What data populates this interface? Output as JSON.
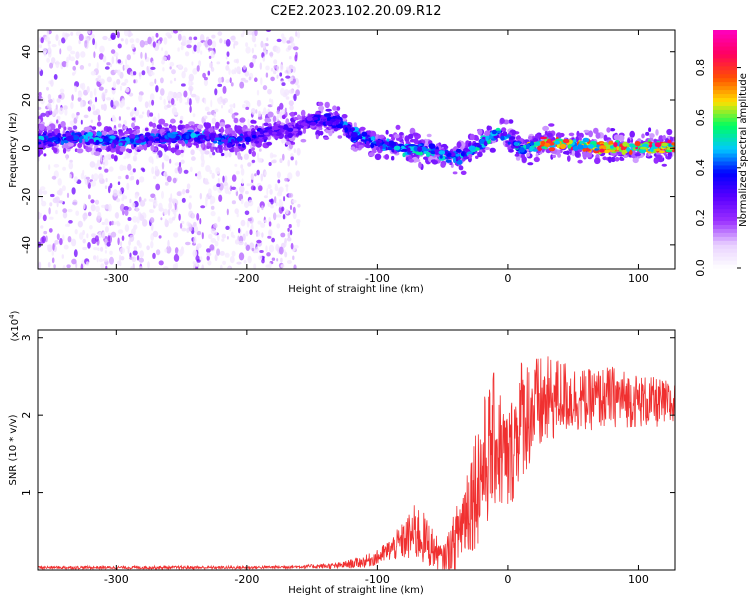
{
  "chart_data": [
    {
      "type": "heatmap",
      "title": "C2E2.2023.102.20.09.R12",
      "xlabel": "Height of straight line (km)",
      "ylabel": "Frequency (Hz)",
      "xlim": [
        -360,
        128
      ],
      "ylim": [
        -50,
        49
      ],
      "xticks": [
        -300,
        -200,
        -100,
        0,
        100
      ],
      "xtick_labels": [
        "-300",
        "-200",
        "-100",
        "0",
        "100"
      ],
      "yticks": [
        -40,
        -20,
        0,
        20,
        40
      ],
      "ytick_labels": [
        "-40",
        "-20",
        "0",
        "20",
        "40"
      ],
      "colorbar": {
        "label": "Normalized spectral amplitude",
        "range": [
          0,
          0.95
        ],
        "ticks": [
          0.0,
          0.2,
          0.4,
          0.6,
          0.8
        ],
        "tick_labels": [
          "0.0",
          "0.2",
          "0.4",
          "0.6",
          "0.8"
        ],
        "colors": [
          "#ffffff",
          "#e8d0ff",
          "#9b30ff",
          "#5a00ff",
          "#0000ff",
          "#00c8ff",
          "#00ff60",
          "#ffe000",
          "#ff5000",
          "#ff0060",
          "#ff00c0"
        ]
      },
      "ridge": {
        "x": [
          -355,
          -330,
          -300,
          -270,
          -240,
          -210,
          -180,
          -160,
          -150,
          -130,
          -120,
          -100,
          -80,
          -60,
          -40,
          -20,
          -5,
          0,
          10,
          30,
          60,
          90,
          128
        ],
        "y": [
          4,
          4,
          3,
          4,
          5,
          3,
          7,
          8,
          12,
          11,
          6,
          2,
          0,
          -1,
          -4,
          2,
          7,
          4,
          0,
          2,
          1,
          0,
          1
        ],
        "amplitude": [
          0.45,
          0.45,
          0.45,
          0.4,
          0.45,
          0.4,
          0.3,
          0.3,
          0.35,
          0.4,
          0.45,
          0.45,
          0.5,
          0.5,
          0.45,
          0.5,
          0.5,
          0.45,
          0.55,
          0.85,
          0.75,
          0.8,
          0.8
        ]
      },
      "noise_region_x": [
        -360,
        -160
      ]
    },
    {
      "type": "line",
      "title": "",
      "xlabel": "Height of straight line (km)",
      "ylabel": "SNR (10 * v/v)",
      "y_scale_label": "(x10",
      "y_scale_exponent": "4",
      "y_scale_suffix": ")",
      "xlim": [
        -360,
        128
      ],
      "ylim": [
        0,
        3.1
      ],
      "xticks": [
        -300,
        -200,
        -100,
        0,
        100
      ],
      "xtick_labels": [
        "-300",
        "-200",
        "-100",
        "0",
        "100"
      ],
      "yticks": [
        1,
        2,
        3
      ],
      "ytick_labels": [
        "1",
        "2",
        "3"
      ],
      "series": [
        {
          "color": "#f03030",
          "x": [
            -360,
            -300,
            -250,
            -200,
            -160,
            -130,
            -110,
            -100,
            -90,
            -80,
            -70,
            -60,
            -50,
            -40,
            -30,
            -20,
            -10,
            0,
            10,
            20,
            30,
            40,
            60,
            80,
            100,
            128
          ],
          "y": [
            0.03,
            0.03,
            0.03,
            0.03,
            0.04,
            0.05,
            0.1,
            0.15,
            0.25,
            0.35,
            0.45,
            0.3,
            0.12,
            0.35,
            0.8,
            1.2,
            1.6,
            1.3,
            1.9,
            2.0,
            2.1,
            2.2,
            2.15,
            2.2,
            2.15,
            2.1
          ],
          "spread": [
            0.02,
            0.02,
            0.02,
            0.02,
            0.02,
            0.04,
            0.08,
            0.1,
            0.15,
            0.25,
            0.4,
            0.3,
            0.15,
            0.4,
            0.7,
            0.9,
            0.9,
            0.7,
            0.8,
            0.7,
            0.6,
            0.5,
            0.4,
            0.4,
            0.35,
            0.3
          ]
        }
      ]
    }
  ]
}
